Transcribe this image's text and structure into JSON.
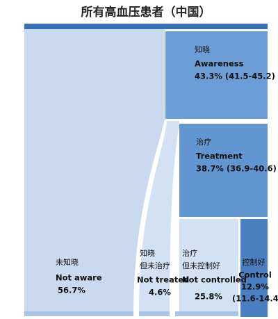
{
  "header": {
    "title": "所有高血压患者（中国）"
  },
  "nodes": {
    "awareness": {
      "zh": "知晓",
      "en": "Awareness",
      "value": "43.3% (41.5-45.2)"
    },
    "treatment": {
      "zh": "治疗",
      "en": "Treatment",
      "value": "38.7% (36.9-40.6)"
    },
    "not_aware": {
      "zh": "未知晓",
      "en": "Not aware",
      "value": "56.7%"
    },
    "not_treated": {
      "zh": [
        "知晓",
        "但未治疗"
      ],
      "en": "Not treated",
      "value": "4.6%"
    },
    "not_controlled": {
      "zh": [
        "治疗",
        "但未控制好"
      ],
      "en": "Not controlled",
      "value": "25.8%"
    },
    "control": {
      "zh": "控制好",
      "en": "Control",
      "value": "12.9%",
      "ci": "(11.6-14.4)"
    }
  }
}
